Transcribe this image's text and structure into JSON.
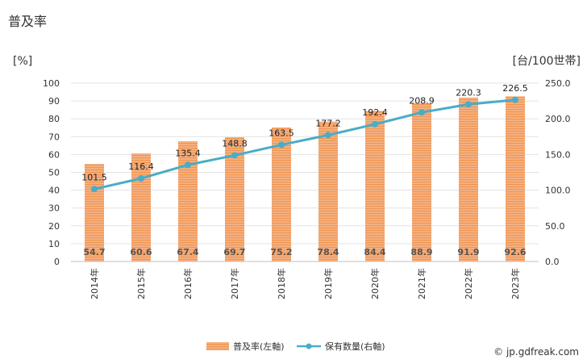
{
  "chart_data": {
    "type": "bar+line",
    "title": "普及率",
    "categories": [
      "2014年",
      "2015年",
      "2016年",
      "2017年",
      "2018年",
      "2019年",
      "2020年",
      "2021年",
      "2022年",
      "2023年"
    ],
    "left_axis": {
      "unit": "[%]",
      "ylim": [
        0,
        100
      ],
      "ticks": [
        0,
        10,
        20,
        30,
        40,
        50,
        60,
        70,
        80,
        90,
        100
      ]
    },
    "right_axis": {
      "unit": "[台/100世帯]",
      "ylim": [
        0,
        250
      ],
      "ticks": [
        "0.0",
        "50.0",
        "100.0",
        "150.0",
        "200.0",
        "250.0"
      ]
    },
    "series": [
      {
        "name": "普及率(左軸)",
        "kind": "bar",
        "axis": "left",
        "color": "#f4a46a",
        "values": [
          54.7,
          60.6,
          67.4,
          69.7,
          75.2,
          78.4,
          84.4,
          88.9,
          91.9,
          92.6
        ],
        "labels": [
          "54.7",
          "60.6",
          "67.4",
          "69.7",
          "75.2",
          "78.4",
          "84.4",
          "88.9",
          "91.9",
          "92.6"
        ]
      },
      {
        "name": "保有数量(右軸)",
        "kind": "line",
        "axis": "right",
        "color": "#4bacc6",
        "values": [
          101.5,
          116.4,
          135.4,
          148.8,
          163.5,
          177.2,
          192.4,
          208.9,
          220.3,
          226.5
        ],
        "labels": [
          "101.5",
          "116.4",
          "135.4",
          "148.8",
          "163.5",
          "177.2",
          "192.4",
          "208.9",
          "220.3",
          "226.5"
        ]
      }
    ],
    "grid": true,
    "legend_position": "bottom-center"
  },
  "footer": {
    "credit": "© jp.gdfreak.com"
  }
}
